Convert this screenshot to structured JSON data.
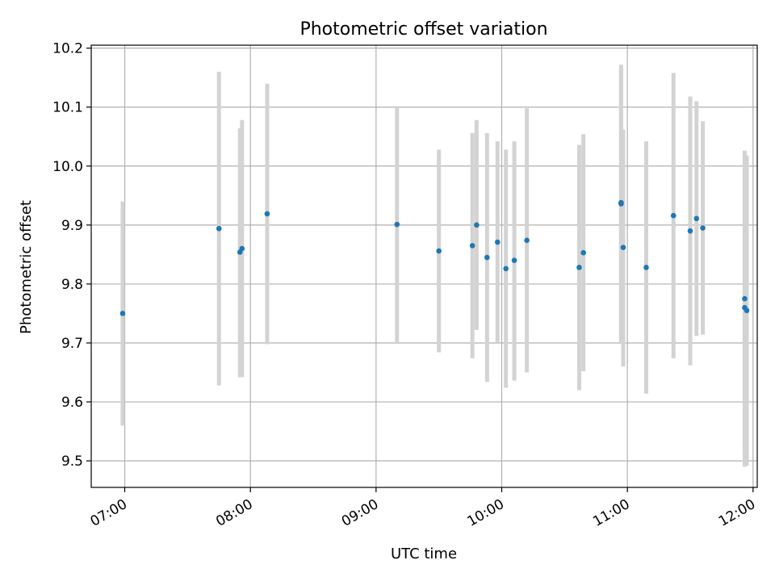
{
  "chart_data": {
    "type": "scatter",
    "title": "Photometric offset variation",
    "xlabel": "UTC time",
    "ylabel": "Photometric offset",
    "xlim": [
      "06:44",
      "12:02"
    ],
    "ylim": [
      9.455,
      10.205
    ],
    "grid": true,
    "x_ticks": [
      "07:00",
      "08:00",
      "09:00",
      "10:00",
      "11:00",
      "12:00"
    ],
    "y_ticks": [
      9.5,
      9.6,
      9.7,
      9.8,
      9.9,
      10.0,
      10.1,
      10.2
    ],
    "y_tick_labels": [
      "9.5",
      "9.6",
      "9.7",
      "9.8",
      "9.9",
      "10.0",
      "10.1",
      "10.2"
    ],
    "marker_color": "#1f77b4",
    "errorbar_color": "#d3d3d3",
    "points": [
      {
        "t": "06:59",
        "y": 9.75,
        "lo": 9.56,
        "hi": 9.94
      },
      {
        "t": "07:45",
        "y": 9.894,
        "lo": 9.628,
        "hi": 10.16
      },
      {
        "t": "07:55",
        "y": 9.854,
        "lo": 9.642,
        "hi": 10.064
      },
      {
        "t": "07:56",
        "y": 9.86,
        "lo": 9.642,
        "hi": 10.078
      },
      {
        "t": "08:08",
        "y": 9.919,
        "lo": 9.698,
        "hi": 10.14
      },
      {
        "t": "09:10",
        "y": 9.901,
        "lo": 9.7,
        "hi": 10.1
      },
      {
        "t": "09:30",
        "y": 9.856,
        "lo": 9.684,
        "hi": 10.028
      },
      {
        "t": "09:46",
        "y": 9.865,
        "lo": 9.674,
        "hi": 10.056
      },
      {
        "t": "09:48",
        "y": 9.9,
        "lo": 9.722,
        "hi": 10.078
      },
      {
        "t": "09:53",
        "y": 9.845,
        "lo": 9.634,
        "hi": 10.056
      },
      {
        "t": "09:58",
        "y": 9.871,
        "lo": 9.7,
        "hi": 10.042
      },
      {
        "t": "10:02",
        "y": 9.826,
        "lo": 9.624,
        "hi": 10.028
      },
      {
        "t": "10:06",
        "y": 9.84,
        "lo": 9.636,
        "hi": 10.042
      },
      {
        "t": "10:12",
        "y": 9.874,
        "lo": 9.65,
        "hi": 10.098
      },
      {
        "t": "10:37",
        "y": 9.828,
        "lo": 9.62,
        "hi": 10.036
      },
      {
        "t": "10:39",
        "y": 9.853,
        "lo": 9.652,
        "hi": 10.054
      },
      {
        "t": "10:57",
        "y": 9.936,
        "lo": 9.7,
        "hi": 10.172
      },
      {
        "t": "10:57",
        "y": 9.938,
        "lo": 9.706,
        "hi": 10.168
      },
      {
        "t": "10:58",
        "y": 9.862,
        "lo": 9.66,
        "hi": 10.062
      },
      {
        "t": "11:09",
        "y": 9.828,
        "lo": 9.614,
        "hi": 10.042
      },
      {
        "t": "11:22",
        "y": 9.916,
        "lo": 9.674,
        "hi": 10.158
      },
      {
        "t": "11:30",
        "y": 9.89,
        "lo": 9.662,
        "hi": 10.118
      },
      {
        "t": "11:33",
        "y": 9.911,
        "lo": 9.712,
        "hi": 10.11
      },
      {
        "t": "11:36",
        "y": 9.895,
        "lo": 9.714,
        "hi": 10.076
      },
      {
        "t": "11:56",
        "y": 9.775,
        "lo": 9.524,
        "hi": 10.026
      },
      {
        "t": "11:56",
        "y": 9.76,
        "lo": 9.49,
        "hi": 10.022
      },
      {
        "t": "11:57",
        "y": 9.755,
        "lo": 9.492,
        "hi": 10.018
      }
    ]
  }
}
